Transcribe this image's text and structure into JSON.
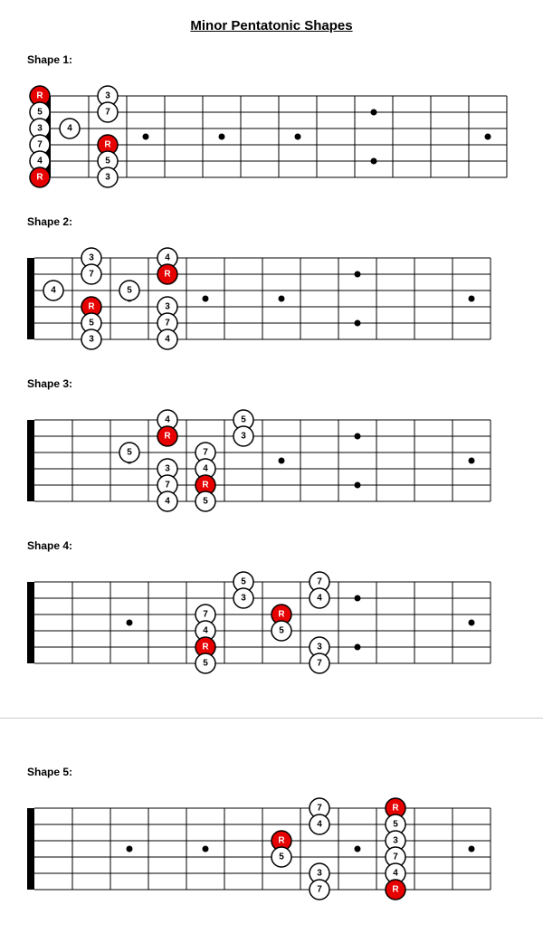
{
  "title": "Minor Pentatonic Shapes",
  "fretboard": {
    "strings": 6,
    "frets": 12,
    "fret_width": 42,
    "string_gap": 18,
    "nut_width": 8,
    "line_color": "#000000",
    "marker_color": "#000000",
    "marker_radius": 3.5,
    "single_marker_frets": [
      3,
      5,
      7,
      9,
      12
    ],
    "double_marker_frets": [],
    "note_radius": 11,
    "note_font_size": 10,
    "root_fill": "#e60000",
    "root_text": "#ffffff",
    "other_fill": "#ffffff",
    "other_text": "#000000",
    "note_border": "#000000"
  },
  "shapes": [
    {
      "label": "Shape 1:",
      "show_open": true,
      "double_marker_frets": [
        9
      ],
      "single_marker_frets": [
        3,
        5,
        7,
        12
      ],
      "notes": [
        {
          "string": 1,
          "fret": 0,
          "label": "R",
          "root": true
        },
        {
          "string": 2,
          "fret": 0,
          "label": "5",
          "root": false
        },
        {
          "string": 3,
          "fret": 0,
          "label": "3",
          "root": false
        },
        {
          "string": 4,
          "fret": 0,
          "label": "7",
          "root": false
        },
        {
          "string": 5,
          "fret": 0,
          "label": "4",
          "root": false
        },
        {
          "string": 6,
          "fret": 0,
          "label": "R",
          "root": true
        },
        {
          "string": 1,
          "fret": 2,
          "label": "3",
          "root": false
        },
        {
          "string": 2,
          "fret": 2,
          "label": "7",
          "root": false
        },
        {
          "string": 3,
          "fret": 1,
          "label": "4",
          "root": false
        },
        {
          "string": 4,
          "fret": 2,
          "label": "R",
          "root": true
        },
        {
          "string": 5,
          "fret": 2,
          "label": "5",
          "root": false
        },
        {
          "string": 6,
          "fret": 2,
          "label": "3",
          "root": false
        }
      ]
    },
    {
      "label": "Shape 2:",
      "show_open": false,
      "double_marker_frets": [
        9
      ],
      "single_marker_frets": [
        3,
        5,
        7,
        12
      ],
      "notes": [
        {
          "string": 1,
          "fret": 2,
          "label": "3",
          "root": false
        },
        {
          "string": 2,
          "fret": 2,
          "label": "7",
          "root": false
        },
        {
          "string": 3,
          "fret": 1,
          "label": "4",
          "root": false
        },
        {
          "string": 4,
          "fret": 2,
          "label": "R",
          "root": true
        },
        {
          "string": 5,
          "fret": 2,
          "label": "5",
          "root": false
        },
        {
          "string": 6,
          "fret": 2,
          "label": "3",
          "root": false
        },
        {
          "string": 1,
          "fret": 4,
          "label": "4",
          "root": false
        },
        {
          "string": 2,
          "fret": 4,
          "label": "R",
          "root": true
        },
        {
          "string": 3,
          "fret": 3,
          "label": "5",
          "root": false
        },
        {
          "string": 4,
          "fret": 4,
          "label": "3",
          "root": false
        },
        {
          "string": 5,
          "fret": 4,
          "label": "7",
          "root": false
        },
        {
          "string": 6,
          "fret": 4,
          "label": "4",
          "root": false
        }
      ]
    },
    {
      "label": "Shape 3:",
      "show_open": false,
      "double_marker_frets": [
        9
      ],
      "single_marker_frets": [
        3,
        5,
        7,
        12
      ],
      "notes": [
        {
          "string": 1,
          "fret": 4,
          "label": "4",
          "root": false
        },
        {
          "string": 2,
          "fret": 4,
          "label": "R",
          "root": true
        },
        {
          "string": 3,
          "fret": 3,
          "label": "5",
          "root": false
        },
        {
          "string": 4,
          "fret": 4,
          "label": "3",
          "root": false
        },
        {
          "string": 5,
          "fret": 4,
          "label": "7",
          "root": false
        },
        {
          "string": 6,
          "fret": 4,
          "label": "4",
          "root": false
        },
        {
          "string": 1,
          "fret": 6,
          "label": "5",
          "root": false
        },
        {
          "string": 2,
          "fret": 6,
          "label": "3",
          "root": false
        },
        {
          "string": 3,
          "fret": 5,
          "label": "7",
          "root": false
        },
        {
          "string": 4,
          "fret": 5,
          "label": "4",
          "root": false
        },
        {
          "string": 5,
          "fret": 5,
          "label": "R",
          "root": true
        },
        {
          "string": 6,
          "fret": 5,
          "label": "5",
          "root": false
        }
      ]
    },
    {
      "label": "Shape 4:",
      "show_open": false,
      "double_marker_frets": [
        9
      ],
      "single_marker_frets": [
        3,
        5,
        7,
        12
      ],
      "notes": [
        {
          "string": 1,
          "fret": 6,
          "label": "5",
          "root": false
        },
        {
          "string": 2,
          "fret": 6,
          "label": "3",
          "root": false
        },
        {
          "string": 3,
          "fret": 5,
          "label": "7",
          "root": false
        },
        {
          "string": 4,
          "fret": 5,
          "label": "4",
          "root": false
        },
        {
          "string": 5,
          "fret": 5,
          "label": "R",
          "root": true
        },
        {
          "string": 6,
          "fret": 5,
          "label": "5",
          "root": false
        },
        {
          "string": 1,
          "fret": 8,
          "label": "7",
          "root": false
        },
        {
          "string": 2,
          "fret": 8,
          "label": "4",
          "root": false
        },
        {
          "string": 3,
          "fret": 7,
          "label": "R",
          "root": true
        },
        {
          "string": 4,
          "fret": 7,
          "label": "5",
          "root": false
        },
        {
          "string": 5,
          "fret": 8,
          "label": "3",
          "root": false
        },
        {
          "string": 6,
          "fret": 8,
          "label": "7",
          "root": false
        }
      ]
    },
    {
      "label": "Shape 5:",
      "show_open": false,
      "double_marker_frets": [],
      "single_marker_frets": [
        3,
        5,
        7,
        9,
        12
      ],
      "divider_before": true,
      "notes": [
        {
          "string": 1,
          "fret": 8,
          "label": "7",
          "root": false
        },
        {
          "string": 2,
          "fret": 8,
          "label": "4",
          "root": false
        },
        {
          "string": 3,
          "fret": 7,
          "label": "R",
          "root": true
        },
        {
          "string": 4,
          "fret": 7,
          "label": "5",
          "root": false
        },
        {
          "string": 5,
          "fret": 8,
          "label": "3",
          "root": false
        },
        {
          "string": 6,
          "fret": 8,
          "label": "7",
          "root": false
        },
        {
          "string": 1,
          "fret": 10,
          "label": "R",
          "root": true
        },
        {
          "string": 2,
          "fret": 10,
          "label": "5",
          "root": false
        },
        {
          "string": 3,
          "fret": 10,
          "label": "3",
          "root": false
        },
        {
          "string": 4,
          "fret": 10,
          "label": "7",
          "root": false
        },
        {
          "string": 5,
          "fret": 10,
          "label": "4",
          "root": false
        },
        {
          "string": 6,
          "fret": 10,
          "label": "R",
          "root": true
        }
      ]
    }
  ]
}
